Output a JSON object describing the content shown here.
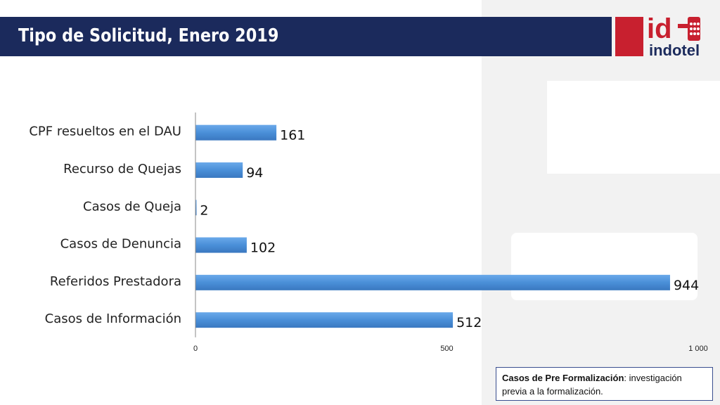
{
  "header": {
    "title": "Tipo de Solicitud, Enero 2019"
  },
  "logo": {
    "mark": "id",
    "word": "indotel",
    "colors": {
      "red": "#c8202f",
      "navy": "#1b2a5c"
    }
  },
  "note": {
    "term": "Casos de Pre Formalización",
    "definition": ": investigación previa a la formalización."
  },
  "chart_data": {
    "type": "bar",
    "orientation": "horizontal",
    "categories": [
      "CPF resueltos en el DAU",
      "Recurso de Quejas",
      "Casos de Queja",
      "Casos de Denuncia",
      "Referidos Prestadora",
      "Casos de Información"
    ],
    "values": [
      161,
      94,
      2,
      102,
      944,
      512
    ],
    "xlim": [
      0,
      1000
    ],
    "ticks": [
      0,
      500,
      1000
    ],
    "tick_labels": [
      "0",
      "500",
      "1 000"
    ],
    "bar_color": "#4a8fd8",
    "grid": false
  }
}
